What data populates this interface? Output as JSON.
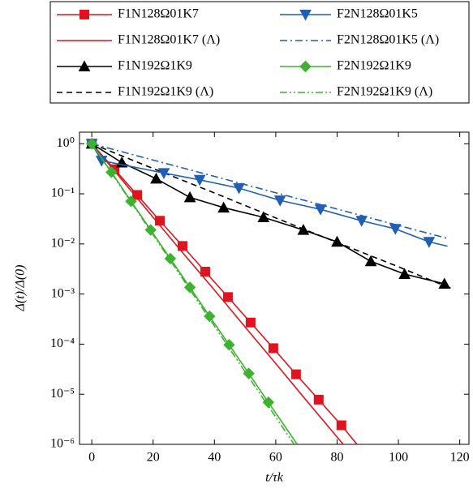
{
  "chart_data": {
    "type": "line",
    "xlabel": "t/τk",
    "ylabel": "Δ(t)/Δ(0)",
    "xlim": [
      -4,
      123
    ],
    "ylim": [
      1e-06,
      1.7
    ],
    "yscale": "log",
    "xticks": [
      0,
      20,
      40,
      60,
      80,
      100,
      120
    ],
    "yticks": [
      {
        "value": 1,
        "label": "10⁰"
      },
      {
        "value": 0.1,
        "label": "10⁻¹"
      },
      {
        "value": 0.01,
        "label": "10⁻²"
      },
      {
        "value": 0.001,
        "label": "10⁻³"
      },
      {
        "value": 0.0001,
        "label": "10⁻⁴"
      },
      {
        "value": 1e-05,
        "label": "10⁻⁵"
      },
      {
        "value": 1e-06,
        "label": "10⁻⁶"
      }
    ],
    "legend": "top",
    "series": [
      {
        "name": "F1N128Ω01K7",
        "color": "#e0141e",
        "marker": "square",
        "linestyle": "solid",
        "x": [
          0,
          7.4,
          14.8,
          22.2,
          29.6,
          37,
          44.4,
          51.8,
          59.2,
          66.6,
          74,
          81.4,
          86.5
        ],
        "values": [
          1,
          0.31,
          0.095,
          0.029,
          0.0091,
          0.0028,
          0.00087,
          0.00027,
          8.3e-05,
          2.5e-05,
          7.8e-06,
          2.4e-06,
          1e-06
        ]
      },
      {
        "name": "F1N128Ω01K7 (Λ)",
        "color": "#e0141e",
        "linestyle": "solid",
        "x": [
          0,
          10,
          20,
          30,
          40,
          50,
          60,
          70,
          82
        ],
        "values": [
          1,
          0.185,
          0.034,
          0.0063,
          0.0012,
          0.00022,
          4.1e-05,
          7.5e-06,
          1e-06
        ]
      },
      {
        "name": "F1N192Ω1K9",
        "color": "#000000",
        "marker": "triangle-up",
        "linestyle": "solid",
        "x": [
          0,
          9.8,
          21,
          32,
          43,
          56,
          69,
          80,
          91,
          102,
          115,
          117
        ],
        "values": [
          1,
          0.42,
          0.2,
          0.085,
          0.053,
          0.034,
          0.019,
          0.011,
          0.0045,
          0.0025,
          0.0016,
          0.0013
        ]
      },
      {
        "name": "F1N192Ω1K9 (Λ)",
        "color": "#000000",
        "linestyle": "dashed",
        "x": [
          0,
          20,
          40,
          60,
          80,
          100,
          117
        ],
        "values": [
          1,
          0.32,
          0.104,
          0.033,
          0.0107,
          0.0035,
          0.0013
        ]
      },
      {
        "name": "F2N128Ω01K5",
        "color": "#1f5fb4",
        "marker": "triangle-down",
        "linestyle": "solid",
        "x": [
          0,
          3.2,
          23.5,
          35.2,
          48,
          61.4,
          74.6,
          88,
          99,
          110,
          116
        ],
        "values": [
          1,
          0.46,
          0.26,
          0.19,
          0.13,
          0.074,
          0.049,
          0.029,
          0.02,
          0.011,
          0.009
        ]
      },
      {
        "name": "F2N128Ω01K5 (Λ)",
        "color": "#1f5fb4",
        "linestyle": "dashdot",
        "x": [
          0,
          20,
          40,
          60,
          80,
          100,
          116
        ],
        "values": [
          1,
          0.472,
          0.223,
          0.105,
          0.0497,
          0.0234,
          0.0129
        ]
      },
      {
        "name": "F2N192Ω1K9",
        "color": "#3cb32e",
        "marker": "diamond",
        "linestyle": "solid",
        "x": [
          0,
          6.4,
          12.8,
          19.2,
          25.6,
          32,
          38.4,
          44.8,
          51.2,
          57.6,
          67
        ],
        "values": [
          1,
          0.27,
          0.071,
          0.019,
          0.0051,
          0.00136,
          0.00036,
          9.7e-05,
          2.6e-05,
          6.9e-06,
          1e-06
        ]
      },
      {
        "name": "F2N192Ω1K9 (Λ)",
        "color": "#3cb32e",
        "linestyle": "dashdotdot",
        "x": [
          0,
          10,
          20,
          30,
          40,
          50,
          60,
          66
        ],
        "values": [
          1,
          0.123,
          0.0152,
          0.00187,
          0.00023,
          2.8e-05,
          3.5e-06,
          1e-06
        ]
      }
    ]
  }
}
